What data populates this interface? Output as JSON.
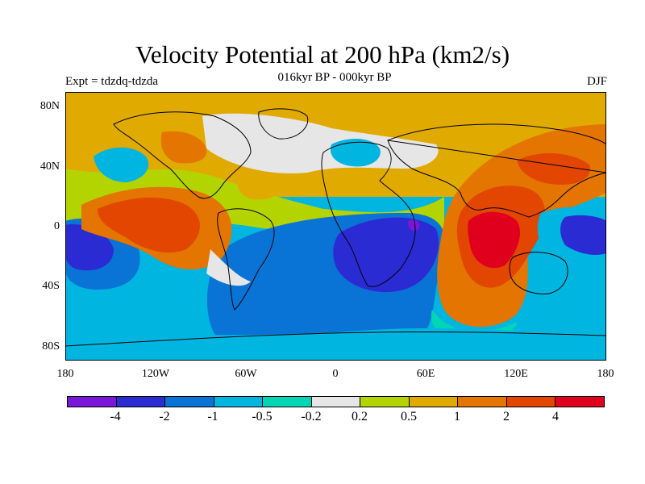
{
  "title": "Velocity Potential at 200 hPa (km2/s)",
  "subtitle": "016kyr BP - 000kyr BP",
  "left_label": "Expt = tdzdq-tdzda",
  "right_label": "DJF",
  "lat_ticks": [
    "80N",
    "40N",
    "0",
    "40S",
    "80S"
  ],
  "lon_ticks": [
    "180",
    "120W",
    "60W",
    "0",
    "60E",
    "120E",
    "180"
  ],
  "colorbar": {
    "labels": [
      "-4",
      "-2",
      "-1",
      "-0.5",
      "-0.2",
      "0.2",
      "0.5",
      "1",
      "2",
      "4"
    ],
    "colors": [
      "#7a16d8",
      "#2b2bd4",
      "#0a73d6",
      "#00b5e0",
      "#00d6b6",
      "#e6e6e6",
      "#b3d400",
      "#e0aa00",
      "#e37500",
      "#e24600",
      "#e0001e"
    ]
  }
}
